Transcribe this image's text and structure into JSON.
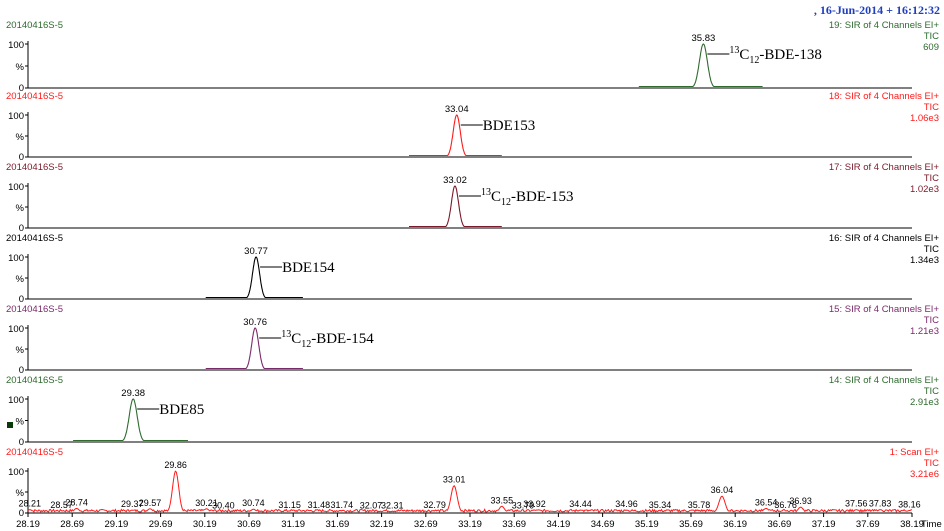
{
  "header": {
    "date": ", 16-Jun-2014 + 16:12:32"
  },
  "colors": {
    "green": "#2f6b2f",
    "red": "#ff1a1a",
    "darkred": "#7a1a2a",
    "purple": "#7a2a6a",
    "black": "#000000"
  },
  "chart_data": {
    "type": "line",
    "xlabel": "Time",
    "x_ticks": [
      "28.19",
      "28.69",
      "29.19",
      "29.69",
      "30.19",
      "30.69",
      "31.19",
      "31.69",
      "32.19",
      "32.69",
      "33.19",
      "33.69",
      "34.19",
      "34.69",
      "35.19",
      "35.69",
      "36.19",
      "36.69",
      "37.19",
      "37.69",
      "38.19"
    ],
    "xlim": [
      28.19,
      38.19
    ],
    "y_ticks": [
      "0",
      "%",
      "100"
    ],
    "ylim": [
      0,
      100
    ],
    "panels": [
      {
        "sample": "20140416S-5",
        "channel": "19: SIR of 4 Channels EI+",
        "tic": "TIC",
        "intensity": "609",
        "color": "#2f6b2f",
        "peak": 35.83,
        "peak_label": "35.83",
        "sigma": 0.045,
        "baseline": [
          35.1,
          36.5
        ],
        "compound": {
          "sup": "13",
          "main": "C",
          "sub": "12",
          "rest": "-BDE-138"
        }
      },
      {
        "sample": "20140416S-5",
        "channel": "18: SIR of 4 Channels EI+",
        "tic": "TIC",
        "intensity": "1.06e3",
        "color": "#ff1a1a",
        "peak": 33.04,
        "peak_label": "33.04",
        "sigma": 0.04,
        "baseline": [
          32.5,
          33.55
        ],
        "compound": {
          "sup": "",
          "main": "BDE153",
          "sub": "",
          "rest": ""
        }
      },
      {
        "sample": "20140416S-5",
        "channel": "17: SIR of 4 Channels EI+",
        "tic": "TIC",
        "intensity": "1.02e3",
        "color": "#7a1a2a",
        "peak": 33.02,
        "peak_label": "33.02",
        "sigma": 0.04,
        "baseline": [
          32.5,
          33.55
        ],
        "compound": {
          "sup": "13",
          "main": "C",
          "sub": "12",
          "rest": "-BDE-153"
        }
      },
      {
        "sample": "20140416S-5",
        "channel": "16: SIR of 4 Channels EI+",
        "tic": "TIC",
        "intensity": "1.34e3",
        "color": "#000000",
        "peak": 30.77,
        "peak_label": "30.77",
        "sigma": 0.04,
        "baseline": [
          30.2,
          31.3
        ],
        "compound": {
          "sup": "",
          "main": "BDE154",
          "sub": "",
          "rest": ""
        }
      },
      {
        "sample": "20140416S-5",
        "channel": "15: SIR of 4 Channels EI+",
        "tic": "TIC",
        "intensity": "1.21e3",
        "color": "#7a2a6a",
        "peak": 30.76,
        "peak_label": "30.76",
        "sigma": 0.04,
        "baseline": [
          30.2,
          31.3
        ],
        "compound": {
          "sup": "13",
          "main": "C",
          "sub": "12",
          "rest": "-BDE-154"
        }
      },
      {
        "sample": "20140416S-5",
        "channel": "14: SIR of 4 Channels EI+",
        "tic": "TIC",
        "intensity": "2.91e3",
        "color": "#2f6b2f",
        "peak": 29.38,
        "peak_label": "29.38",
        "sigma": 0.045,
        "baseline": [
          28.7,
          30.0
        ],
        "compound": {
          "sup": "",
          "main": "BDE85",
          "sub": "",
          "rest": ""
        }
      }
    ],
    "scan": {
      "sample": "20140416S-5",
      "channel": "1: Scan EI+",
      "tic": "TIC",
      "intensity": "3.21e6",
      "color": "#ff1a1a",
      "peaks": [
        {
          "label": "28.21",
          "x": 28.21,
          "y": 8
        },
        {
          "label": "28.57",
          "x": 28.57,
          "y": 5
        },
        {
          "label": "28.74",
          "x": 28.74,
          "y": 11
        },
        {
          "label": "29.37",
          "x": 29.37,
          "y": 7
        },
        {
          "label": "29.57",
          "x": 29.57,
          "y": 10
        },
        {
          "label": "29.86",
          "x": 29.86,
          "y": 100
        },
        {
          "label": "30.21",
          "x": 30.21,
          "y": 10
        },
        {
          "label": "30.40",
          "x": 30.4,
          "y": 4
        },
        {
          "label": "30.74",
          "x": 30.74,
          "y": 9
        },
        {
          "label": "31.15",
          "x": 31.15,
          "y": 5
        },
        {
          "label": "31.48",
          "x": 31.48,
          "y": 5
        },
        {
          "label": "31.74",
          "x": 31.74,
          "y": 5
        },
        {
          "label": "32.07",
          "x": 32.07,
          "y": 3
        },
        {
          "label": "32.31",
          "x": 32.31,
          "y": 3
        },
        {
          "label": "32.79",
          "x": 32.79,
          "y": 5
        },
        {
          "label": "33.01",
          "x": 33.01,
          "y": 65
        },
        {
          "label": "33.55",
          "x": 33.55,
          "y": 16
        },
        {
          "label": "33.79",
          "x": 33.79,
          "y": 4
        },
        {
          "label": "33.92",
          "x": 33.92,
          "y": 7
        },
        {
          "label": "34.44",
          "x": 34.44,
          "y": 7
        },
        {
          "label": "34.96",
          "x": 34.96,
          "y": 7
        },
        {
          "label": "35.34",
          "x": 35.34,
          "y": 5
        },
        {
          "label": "35.78",
          "x": 35.78,
          "y": 5
        },
        {
          "label": "36.04",
          "x": 36.04,
          "y": 40
        },
        {
          "label": "36.54",
          "x": 36.54,
          "y": 11
        },
        {
          "label": "36.76",
          "x": 36.76,
          "y": 5
        },
        {
          "label": "36.93",
          "x": 36.93,
          "y": 14
        },
        {
          "label": "37.56",
          "x": 37.56,
          "y": 8
        },
        {
          "label": "37.83",
          "x": 37.83,
          "y": 8
        },
        {
          "label": "38.16",
          "x": 38.16,
          "y": 6
        }
      ]
    }
  }
}
